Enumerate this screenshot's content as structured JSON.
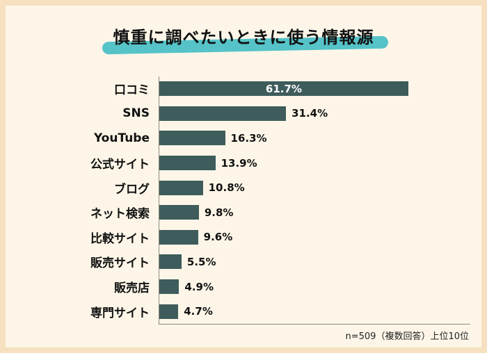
{
  "page": {
    "title": "慎重に調べたいときに使う情報源",
    "footnote": "n=509（複数回答）上位10位"
  },
  "chart_data": {
    "type": "bar",
    "orientation": "horizontal",
    "title": "慎重に調べたいときに使う情報源",
    "categories": [
      "口コミ",
      "SNS",
      "YouTube",
      "公式サイト",
      "ブログ",
      "ネット検索",
      "比較サイト",
      "販売サイト",
      "販売店",
      "専門サイト"
    ],
    "values": [
      61.7,
      31.4,
      16.3,
      13.9,
      10.8,
      9.8,
      9.6,
      5.5,
      4.9,
      4.7
    ],
    "labels": [
      "61.7%",
      "31.4%",
      "16.3%",
      "13.9%",
      "10.8%",
      "9.8%",
      "9.6%",
      "5.5%",
      "4.9%",
      "4.7%"
    ],
    "unit": "%",
    "xlim": [
      0,
      65
    ],
    "legend": "none",
    "grid": "off",
    "note": "n=509（複数回答）上位10位",
    "bar_color": "#3e5c5b",
    "highlight_color": "#55c3c8"
  },
  "colors": {
    "frame": "#f7e0bf",
    "panel": "#fdf6e8",
    "bar": "#3e5c5b",
    "title_highlight": "#55c3c8",
    "text": "#111111"
  }
}
